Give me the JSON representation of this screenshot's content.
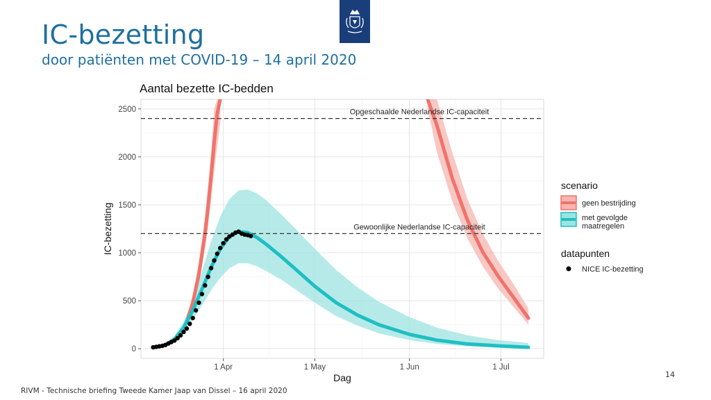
{
  "slide": {
    "title": "IC-bezetting",
    "subtitle": "door patiënten met COVID-19 – 14 april 2020",
    "footer": "RIVM - Technische briefing Tweede Kamer Jaap van Dissel – 16 april 2020",
    "page_number": "14"
  },
  "chart_data": {
    "type": "line",
    "title": "Aantal bezette IC-bedden",
    "xlabel": "Dag",
    "ylabel": "IC-bezetting",
    "x_ticks": [
      {
        "date": "2020-04-01",
        "label": "1 Apr"
      },
      {
        "date": "2020-05-01",
        "label": "1 May"
      },
      {
        "date": "2020-06-01",
        "label": "1 Jun"
      },
      {
        "date": "2020-07-01",
        "label": "1 Jul"
      }
    ],
    "y_ticks": [
      0,
      500,
      1000,
      1500,
      2000,
      2500
    ],
    "xlim": [
      "2020-03-05",
      "2020-07-15"
    ],
    "ylim": [
      -100,
      2600
    ],
    "grid": true,
    "reference_lines": [
      {
        "y": 2400,
        "label": "Opgeschaalde Nederlandse IC-capaciteit"
      },
      {
        "y": 1200,
        "label": "Gewoonlijke Nederlandse IC-capaciteit"
      }
    ],
    "series": [
      {
        "name": "geen bestrijding",
        "color": "#f0736b",
        "band_color": "#f6b5b0",
        "segments": [
          {
            "x": [
              "2020-03-20",
              "2020-03-22",
              "2020-03-24",
              "2020-03-26",
              "2020-03-27",
              "2020-03-28",
              "2020-03-29",
              "2020-03-30",
              "2020-03-31"
            ],
            "y": [
              280,
              480,
              780,
              1200,
              1480,
              1800,
              2150,
              2450,
              2700
            ],
            "upper": [
              330,
              560,
              900,
              1380,
              1700,
              2060,
              2500,
              2700,
              2700
            ],
            "lower": [
              240,
              410,
              670,
              1040,
              1280,
              1560,
              1860,
              2100,
              2350
            ]
          },
          {
            "x": [
              "2020-06-07",
              "2020-06-10",
              "2020-06-15",
              "2020-06-20",
              "2020-06-25",
              "2020-06-30",
              "2020-07-05",
              "2020-07-10"
            ],
            "y": [
              2700,
              2330,
              1780,
              1340,
              1010,
              760,
              540,
              320
            ],
            "upper": [
              2700,
              2650,
              2050,
              1560,
              1200,
              920,
              680,
              420
            ],
            "lower": [
              2500,
              2050,
              1540,
              1150,
              860,
              630,
              440,
              250
            ]
          }
        ]
      },
      {
        "name": "met gevolgde maatregelen",
        "color": "#1fbfc3",
        "band_color": "#9de3e1",
        "segments": [
          {
            "x": [
              "2020-03-09",
              "2020-03-13",
              "2020-03-16",
              "2020-03-19",
              "2020-03-22",
              "2020-03-25",
              "2020-03-28",
              "2020-03-31",
              "2020-04-03",
              "2020-04-06",
              "2020-04-09",
              "2020-04-12",
              "2020-04-15",
              "2020-04-20",
              "2020-04-25",
              "2020-05-01",
              "2020-05-08",
              "2020-05-15",
              "2020-05-22",
              "2020-06-01",
              "2020-06-10",
              "2020-06-20",
              "2020-06-30",
              "2020-07-10"
            ],
            "y": [
              10,
              40,
              100,
              220,
              400,
              620,
              850,
              1040,
              1170,
              1220,
              1210,
              1160,
              1090,
              960,
              820,
              650,
              480,
              350,
              250,
              150,
              90,
              50,
              30,
              15
            ],
            "upper": [
              15,
              50,
              130,
              280,
              510,
              810,
              1120,
              1380,
              1560,
              1650,
              1660,
              1620,
              1550,
              1400,
              1240,
              1040,
              820,
              640,
              490,
              330,
              220,
              140,
              90,
              60
            ],
            "lower": [
              5,
              30,
              75,
              170,
              300,
              450,
              610,
              740,
              840,
              890,
              890,
              860,
              810,
              720,
              610,
              480,
              340,
              240,
              160,
              90,
              50,
              25,
              12,
              5
            ]
          }
        ]
      }
    ],
    "points": {
      "name": "NICE IC-bezetting",
      "color": "#000000",
      "x": [
        "2020-03-09",
        "2020-03-10",
        "2020-03-11",
        "2020-03-12",
        "2020-03-13",
        "2020-03-14",
        "2020-03-15",
        "2020-03-16",
        "2020-03-17",
        "2020-03-18",
        "2020-03-19",
        "2020-03-20",
        "2020-03-21",
        "2020-03-22",
        "2020-03-23",
        "2020-03-24",
        "2020-03-25",
        "2020-03-26",
        "2020-03-27",
        "2020-03-28",
        "2020-03-29",
        "2020-03-30",
        "2020-03-31",
        "2020-04-01",
        "2020-04-02",
        "2020-04-03",
        "2020-04-04",
        "2020-04-05",
        "2020-04-06",
        "2020-04-07",
        "2020-04-08",
        "2020-04-09",
        "2020-04-10"
      ],
      "y": [
        15,
        20,
        25,
        30,
        40,
        55,
        70,
        85,
        110,
        140,
        175,
        210,
        260,
        320,
        400,
        480,
        570,
        660,
        750,
        840,
        920,
        990,
        1050,
        1100,
        1140,
        1170,
        1190,
        1210,
        1220,
        1200,
        1190,
        1185,
        1175
      ]
    },
    "legend": {
      "placement": "right",
      "scenario_title": "scenario",
      "scenario_items": [
        {
          "lines": [
            "geen bestrijding"
          ],
          "color": "#f0736b",
          "band_color": "#f6b5b0"
        },
        {
          "lines": [
            "met gevolgde",
            "maatregelen"
          ],
          "color": "#1fbfc3",
          "band_color": "#9de3e1"
        }
      ],
      "points_title": "datapunten",
      "points_items": [
        {
          "label": "NICE IC-bezetting",
          "color": "#000000"
        }
      ]
    }
  }
}
